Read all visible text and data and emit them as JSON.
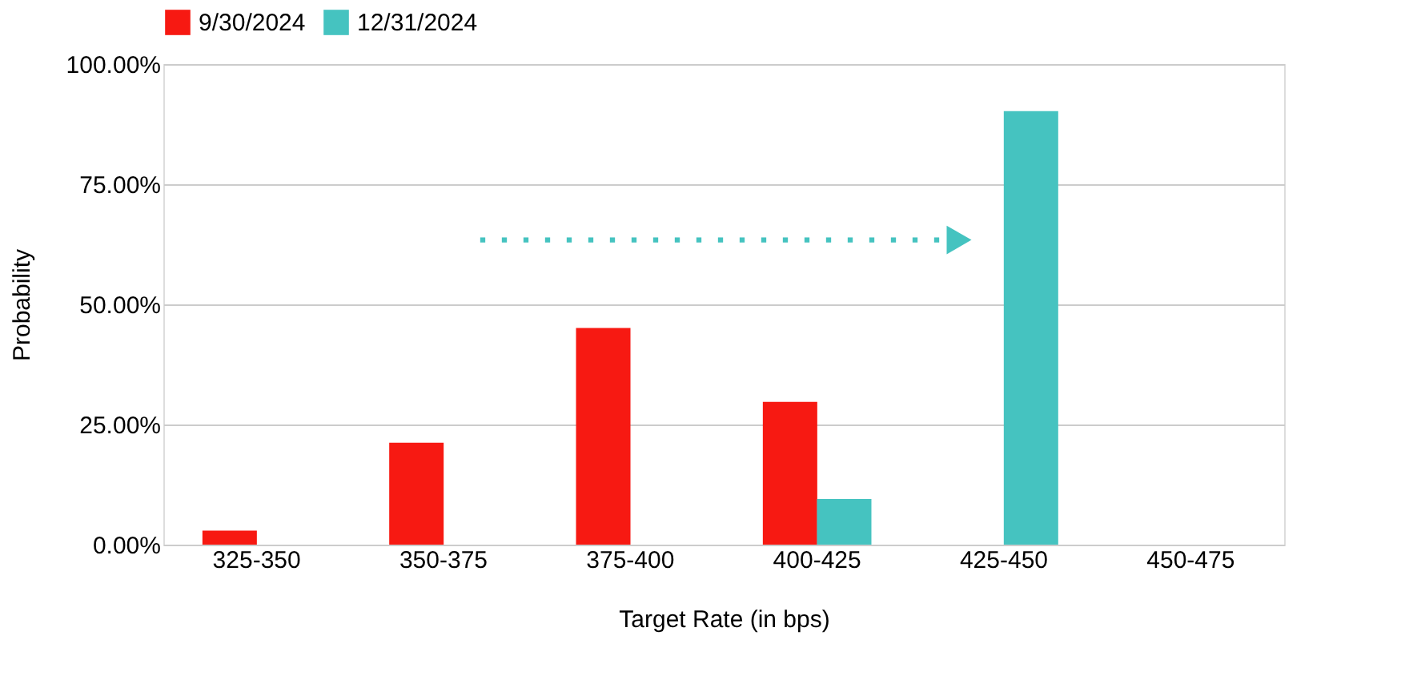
{
  "chart_data": {
    "type": "bar",
    "xlabel": "Target Rate (in bps)",
    "ylabel": "Probability",
    "categories": [
      "325-350",
      "350-375",
      "375-400",
      "400-425",
      "425-450",
      "450-475"
    ],
    "series": [
      {
        "name": "9/30/2024",
        "color": "#f71912",
        "values": [
          2.9,
          21.2,
          45.1,
          29.7,
          null,
          null
        ]
      },
      {
        "name": "12/31/2024",
        "color": "#45c3c0",
        "values": [
          null,
          null,
          null,
          9.5,
          90.2,
          null
        ]
      }
    ],
    "ylim": [
      0,
      100
    ],
    "yticks": [
      {
        "value": 0,
        "label": "0.00%"
      },
      {
        "value": 25,
        "label": "25.00%"
      },
      {
        "value": 50,
        "label": "50.00%"
      },
      {
        "value": 75,
        "label": "75.00%"
      },
      {
        "value": 100,
        "label": "100.00%"
      }
    ],
    "grid": "y",
    "legend": "top"
  }
}
